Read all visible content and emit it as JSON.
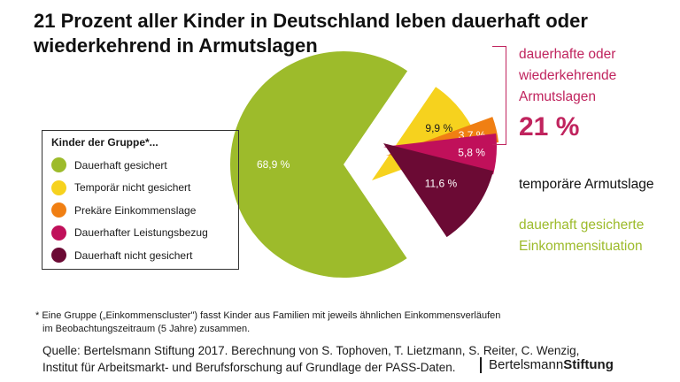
{
  "title": "21 Prozent aller Kinder in Deutschland leben dauerhaft oder wiederkehrend in Armutslagen",
  "legend": {
    "title": "Kinder der Gruppe*...",
    "items": [
      {
        "label": "Dauerhaft gesichert",
        "color": "#9dbb2b"
      },
      {
        "label": "Temporär nicht gesichert",
        "color": "#f6d21e"
      },
      {
        "label": "Prekäre Einkommenslage",
        "color": "#f07f13"
      },
      {
        "label": "Dauerhafter Leistungsbezug",
        "color": "#c0105a"
      },
      {
        "label": "Dauerhaft nicht gesichert",
        "color": "#6b0a34"
      }
    ]
  },
  "annotations": {
    "red_label": "dauerhafte oder wiederkehrende Armutslagen",
    "red_value": "21 %",
    "temp_label": "temporäre Armutslage",
    "green_label": "dauerhaft gesicherte Einkommensituation"
  },
  "footnote": {
    "line1": "* Eine Gruppe („Einkommenscluster\") fasst Kinder aus Familien mit jeweils ähnlichen Einkommensverläufen",
    "line2": "im Beobachtungszeitraum (5 Jahre) zusammen."
  },
  "source": {
    "line1": "Quelle: Bertelsmann Stiftung 2017. Berechnung von S. Tophoven, T. Lietzmann, S. Reiter, C. Wenzig,",
    "line2": "Institut für Arbeitsmarkt- und Berufsforschung auf Grundlage der PASS-Daten."
  },
  "logo": {
    "part1": "Bertelsmann",
    "part2": "Stiftung"
  },
  "chart_data": {
    "type": "pie",
    "title": "21 Prozent aller Kinder in Deutschland leben dauerhaft oder wiederkehrend in Armutslagen",
    "slices": [
      {
        "label": "Dauerhaft gesichert",
        "value": 68.9,
        "display": "68,9 %",
        "color": "#9dbb2b"
      },
      {
        "label": "Temporär nicht gesichert",
        "value": 9.9,
        "display": "9,9 %",
        "color": "#f6d21e"
      },
      {
        "label": "Prekäre Einkommenslage",
        "value": 3.7,
        "display": "3,7 %",
        "color": "#f07f13"
      },
      {
        "label": "Dauerhafter Leistungsbezug",
        "value": 5.8,
        "display": "5,8 %",
        "color": "#c0105a"
      },
      {
        "label": "Dauerhaft nicht gesichert",
        "value": 11.6,
        "display": "11,6 %",
        "color": "#6b0a34"
      }
    ],
    "legend_position": "left"
  }
}
